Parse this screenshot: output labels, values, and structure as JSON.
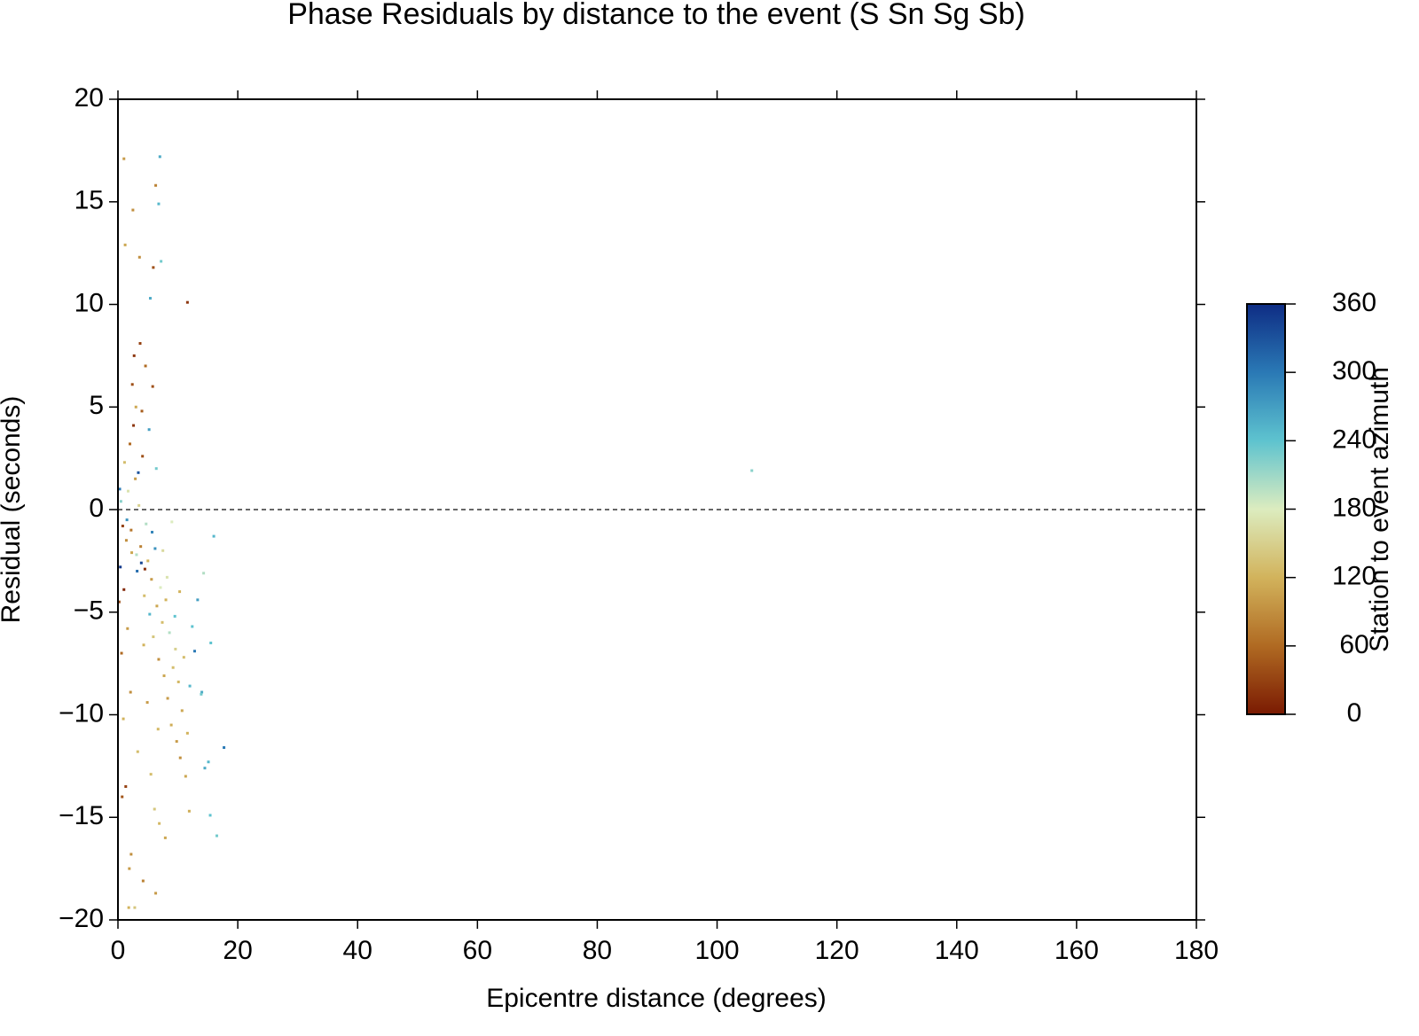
{
  "chart_data": {
    "type": "scatter",
    "title": "Phase Residuals by distance to the event (S Sn Sg Sb)",
    "x_label": "Epicentre distance (degrees)",
    "y_label": "Residual (seconds)",
    "colorbar_label": "Station to event azimuth",
    "xlim": [
      0,
      180
    ],
    "xticks": [
      0,
      20,
      40,
      60,
      80,
      100,
      120,
      140,
      160,
      180
    ],
    "ylim": [
      -20,
      20
    ],
    "yticks": [
      {
        "value": -20,
        "label": "−20"
      },
      {
        "value": -15,
        "label": "−15"
      },
      {
        "value": -10,
        "label": "−10"
      },
      {
        "value": -5,
        "label": "−5"
      },
      0,
      5,
      10,
      15,
      20
    ],
    "hline": 0,
    "clim": [
      0,
      360
    ],
    "cticks": [
      0,
      60,
      120,
      180,
      240,
      300,
      360
    ],
    "colormap": [
      "#7a1a02",
      "#b06a22",
      "#d2b35c",
      "#dcecbf",
      "#5ec3cf",
      "#2a79b5",
      "#0e2c84"
    ],
    "x": [
      7.0,
      105.8,
      11.6,
      17.7,
      16.5,
      1.0,
      6.8,
      7.2,
      5.4,
      6.3,
      2.5,
      1.2,
      3.6,
      5.9,
      1.8,
      2.8,
      6.3,
      4.2,
      15.1,
      15.4,
      14.0,
      15.5,
      16.0,
      14.3,
      0.3,
      0.5,
      0.8,
      1.1,
      1.4,
      1.7,
      2.0,
      2.3,
      2.6,
      2.9,
      3.2,
      3.5,
      3.8,
      4.1,
      4.4,
      4.7,
      5.0,
      5.3,
      5.6,
      5.9,
      6.2,
      6.5,
      6.8,
      7.1,
      7.4,
      7.7,
      8.0,
      8.3,
      8.6,
      8.9,
      9.2,
      9.5,
      9.8,
      10.1,
      10.4,
      10.7,
      11.0,
      11.3,
      11.6,
      12.0,
      12.4,
      12.8,
      13.3,
      13.9,
      14.5,
      0.2,
      0.6,
      0.9,
      1.3,
      1.6,
      2.1,
      2.4,
      2.7,
      3.0,
      3.3,
      3.7,
      4.0,
      4.3,
      4.6,
      4.9,
      5.2,
      5.5,
      5.8,
      6.1,
      6.4,
      6.7,
      0.4,
      1.0,
      1.5,
      2.2,
      3.1,
      3.4,
      4.5,
      5.7,
      7.5,
      9.0,
      8.2,
      9.6,
      10.3,
      11.9,
      7.9,
      6.9,
      3.9,
      2.2,
      1.9,
      0.7
    ],
    "values": [
      17.2,
      1.9,
      10.1,
      -11.6,
      -15.9,
      17.1,
      14.9,
      12.1,
      10.3,
      15.8,
      14.6,
      12.9,
      12.3,
      11.8,
      -19.4,
      -19.4,
      -18.7,
      -18.1,
      -12.3,
      -14.9,
      -8.9,
      -6.5,
      -1.3,
      -3.1,
      1.0,
      0.4,
      -0.8,
      2.3,
      -1.5,
      0.9,
      3.2,
      -2.1,
      4.1,
      1.5,
      -3.0,
      0.2,
      -1.8,
      2.6,
      -4.2,
      -0.7,
      -2.5,
      -5.1,
      -3.4,
      -6.2,
      -1.9,
      -4.7,
      -7.3,
      -3.8,
      -5.5,
      -8.1,
      -4.4,
      -9.2,
      -6.0,
      -10.5,
      -7.7,
      -5.2,
      -11.3,
      -8.4,
      -12.1,
      -9.8,
      -7.2,
      -13.0,
      -10.9,
      -8.6,
      -5.7,
      -6.9,
      -4.4,
      -9.0,
      -12.6,
      -4.5,
      -7.0,
      -10.2,
      -13.5,
      -5.8,
      -8.9,
      6.1,
      7.5,
      5.0,
      -11.8,
      8.1,
      4.8,
      -6.6,
      7.0,
      -9.4,
      3.9,
      -12.9,
      6.0,
      -14.6,
      2.0,
      -10.7,
      -2.8,
      -3.9,
      -0.5,
      -1.0,
      -2.2,
      1.8,
      -2.9,
      -1.1,
      -2.0,
      -0.6,
      -3.3,
      -6.8,
      -4.0,
      -14.7,
      -16.0,
      -15.3,
      -2.6,
      -16.8,
      -17.5,
      -14.0
    ],
    "azimuth": [
      260,
      220,
      20,
      300,
      230,
      100,
      250,
      230,
      260,
      80,
      90,
      110,
      90,
      40,
      120,
      140,
      100,
      80,
      250,
      240,
      260,
      240,
      250,
      200,
      300,
      220,
      30,
      130,
      90,
      170,
      60,
      110,
      20,
      100,
      310,
      150,
      80,
      40,
      130,
      200,
      120,
      250,
      100,
      140,
      280,
      110,
      90,
      180,
      130,
      110,
      120,
      100,
      200,
      115,
      130,
      240,
      100,
      125,
      90,
      110,
      130,
      110,
      120,
      250,
      240,
      300,
      270,
      230,
      260,
      40,
      60,
      120,
      30,
      100,
      90,
      40,
      20,
      110,
      130,
      30,
      50,
      120,
      60,
      100,
      270,
      130,
      40,
      140,
      230,
      125,
      350,
      10,
      280,
      70,
      200,
      330,
      15,
      290,
      160,
      180,
      170,
      150,
      120,
      115,
      110,
      125,
      340,
      90,
      100,
      45
    ]
  }
}
